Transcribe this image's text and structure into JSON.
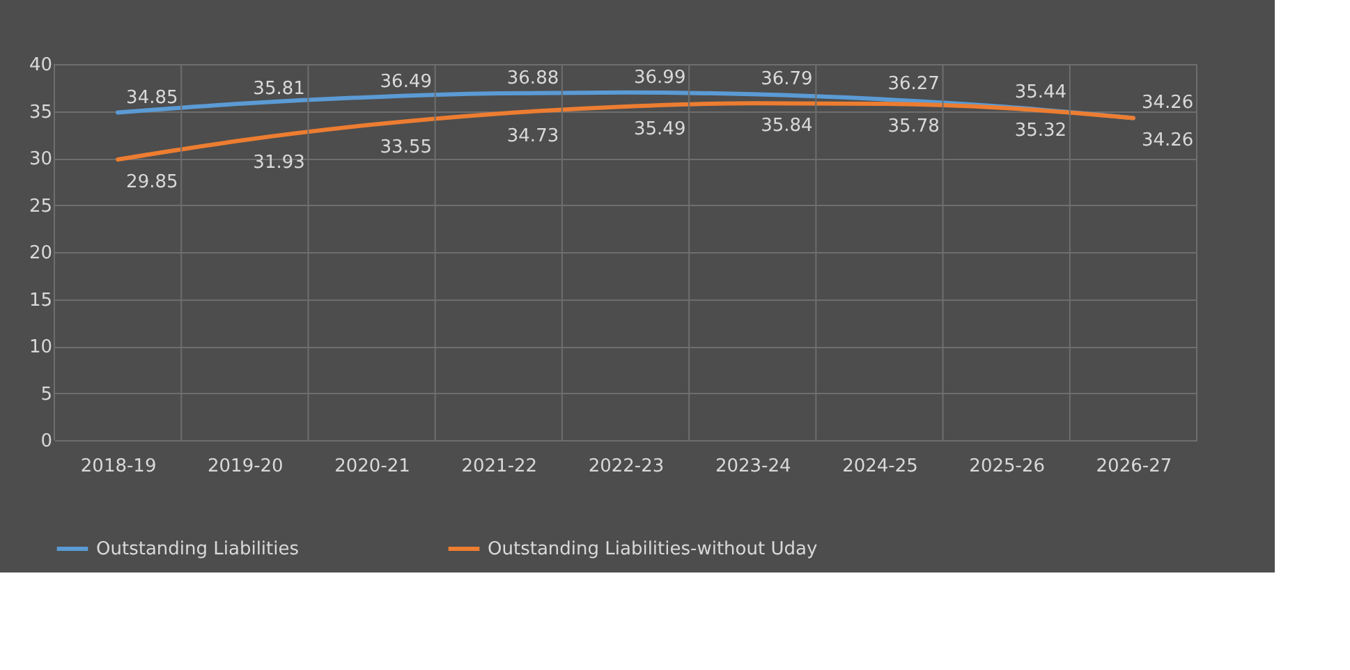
{
  "chart_data": {
    "type": "line",
    "categories": [
      "2018-19",
      "2019-20",
      "2020-21",
      "2021-22",
      "2022-23",
      "2023-24",
      "2024-25",
      "2025-26",
      "2026-27"
    ],
    "series": [
      {
        "name": "Outstanding Liabilities",
        "color": "#5b9bd5",
        "values": [
          34.85,
          35.81,
          36.49,
          36.88,
          36.99,
          36.79,
          36.27,
          35.44,
          34.26
        ]
      },
      {
        "name": "Outstanding Liabilities-without Uday",
        "color": "#ed7d31",
        "values": [
          29.85,
          31.93,
          33.55,
          34.73,
          35.49,
          35.84,
          35.78,
          35.32,
          34.26
        ]
      }
    ],
    "ylim": [
      0,
      40
    ],
    "yticks": [
      0,
      5,
      10,
      15,
      20,
      25,
      30,
      35,
      40
    ],
    "grid": true,
    "legend": "bottom",
    "data_labels": true,
    "marker": "none",
    "line_style": "solid"
  }
}
